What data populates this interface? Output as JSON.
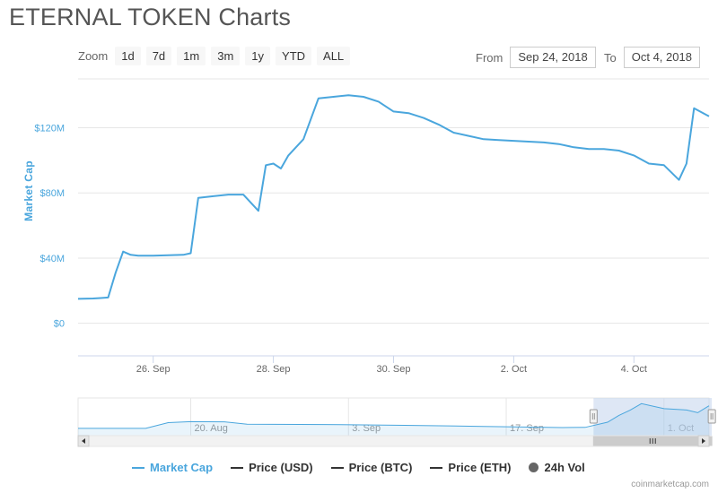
{
  "title": "ETERNAL TOKEN Charts",
  "zoom": {
    "label": "Zoom",
    "buttons": [
      "1d",
      "7d",
      "1m",
      "3m",
      "1y",
      "YTD",
      "ALL"
    ]
  },
  "range": {
    "from_label": "From",
    "from_value": "Sep 24, 2018",
    "to_label": "To",
    "to_value": "Oct 4, 2018"
  },
  "credit": "coinmarketcap.com",
  "colors": {
    "series": "#4aa6dd",
    "grid": "#e6e6e6",
    "navigator_mask": "#c3d4ed"
  },
  "legend": [
    {
      "name": "Market Cap",
      "kind": "line",
      "color": "#4aa6dd"
    },
    {
      "name": "Price (USD)",
      "kind": "line",
      "color": "#333333"
    },
    {
      "name": "Price (BTC)",
      "kind": "line",
      "color": "#333333"
    },
    {
      "name": "Price (ETH)",
      "kind": "line",
      "color": "#333333"
    },
    {
      "name": "24h Vol",
      "kind": "dot",
      "color": "#666666"
    }
  ],
  "chart_data": {
    "type": "line",
    "title": "ETERNAL TOKEN Charts",
    "ylabel": "Market Cap",
    "xlabel": "",
    "y_unit": "USD",
    "ylim": [
      -20000000,
      150000000
    ],
    "y_ticks": [
      {
        "value": 0,
        "label": "$0"
      },
      {
        "value": 40000000,
        "label": "$40M"
      },
      {
        "value": 80000000,
        "label": "$80M"
      },
      {
        "value": 120000000,
        "label": "$120M"
      }
    ],
    "xlim": [
      "2018-09-24 18:00",
      "2018-10-05 06:00"
    ],
    "x_ticks": [
      {
        "value": "2018-09-26",
        "label": "26. Sep"
      },
      {
        "value": "2018-09-28",
        "label": "28. Sep"
      },
      {
        "value": "2018-09-30",
        "label": "30. Sep"
      },
      {
        "value": "2018-10-02",
        "label": "2. Oct"
      },
      {
        "value": "2018-10-04",
        "label": "4. Oct"
      }
    ],
    "grid": true,
    "legend_position": "bottom",
    "series": [
      {
        "name": "Market Cap",
        "color": "#4aa6dd",
        "points": [
          [
            "2018-09-24 18:00",
            15000000
          ],
          [
            "2018-09-25 00:00",
            15200000
          ],
          [
            "2018-09-25 03:00",
            15500000
          ],
          [
            "2018-09-25 06:00",
            15800000
          ],
          [
            "2018-09-25 09:00",
            31000000
          ],
          [
            "2018-09-25 12:00",
            44000000
          ],
          [
            "2018-09-25 15:00",
            42000000
          ],
          [
            "2018-09-25 18:00",
            41500000
          ],
          [
            "2018-09-26 00:00",
            41500000
          ],
          [
            "2018-09-26 06:00",
            41800000
          ],
          [
            "2018-09-26 12:00",
            42000000
          ],
          [
            "2018-09-26 15:00",
            43000000
          ],
          [
            "2018-09-26 18:00",
            77000000
          ],
          [
            "2018-09-27 00:00",
            78000000
          ],
          [
            "2018-09-27 06:00",
            79000000
          ],
          [
            "2018-09-27 12:00",
            79000000
          ],
          [
            "2018-09-27 18:00",
            69000000
          ],
          [
            "2018-09-27 21:00",
            97000000
          ],
          [
            "2018-09-28 00:00",
            98000000
          ],
          [
            "2018-09-28 03:00",
            95000000
          ],
          [
            "2018-09-28 06:00",
            103000000
          ],
          [
            "2018-09-28 12:00",
            113000000
          ],
          [
            "2018-09-28 18:00",
            138000000
          ],
          [
            "2018-09-29 00:00",
            139000000
          ],
          [
            "2018-09-29 06:00",
            140000000
          ],
          [
            "2018-09-29 12:00",
            139000000
          ],
          [
            "2018-09-29 18:00",
            136000000
          ],
          [
            "2018-09-30 00:00",
            130000000
          ],
          [
            "2018-09-30 06:00",
            129000000
          ],
          [
            "2018-09-30 12:00",
            126000000
          ],
          [
            "2018-09-30 18:00",
            122000000
          ],
          [
            "2018-10-01 00:00",
            117000000
          ],
          [
            "2018-10-01 06:00",
            115000000
          ],
          [
            "2018-10-01 12:00",
            113000000
          ],
          [
            "2018-10-01 18:00",
            112500000
          ],
          [
            "2018-10-02 00:00",
            112000000
          ],
          [
            "2018-10-02 06:00",
            111500000
          ],
          [
            "2018-10-02 12:00",
            111000000
          ],
          [
            "2018-10-02 18:00",
            110000000
          ],
          [
            "2018-10-03 00:00",
            108000000
          ],
          [
            "2018-10-03 06:00",
            107000000
          ],
          [
            "2018-10-03 12:00",
            107000000
          ],
          [
            "2018-10-03 18:00",
            106000000
          ],
          [
            "2018-10-04 00:00",
            103000000
          ],
          [
            "2018-10-04 06:00",
            98000000
          ],
          [
            "2018-10-04 12:00",
            97000000
          ],
          [
            "2018-10-04 18:00",
            88000000
          ],
          [
            "2018-10-04 21:00",
            98000000
          ],
          [
            "2018-10-05 00:00",
            132000000
          ],
          [
            "2018-10-05 06:00",
            127000000
          ]
        ]
      }
    ],
    "navigator": {
      "x_ticks": [
        {
          "value": "2018-08-20",
          "label": "20. Aug"
        },
        {
          "value": "2018-09-03",
          "label": "3. Sep"
        },
        {
          "value": "2018-09-17",
          "label": "17. Sep"
        },
        {
          "value": "2018-10-01",
          "label": "1. Oct"
        }
      ],
      "xlim": [
        "2018-08-10",
        "2018-10-05"
      ],
      "selected_range": [
        "2018-09-24 18:00",
        "2018-10-05 06:00"
      ],
      "points": [
        [
          "2018-08-10",
          10000000
        ],
        [
          "2018-08-16",
          10000000
        ],
        [
          "2018-08-18",
          40000000
        ],
        [
          "2018-08-20",
          45000000
        ],
        [
          "2018-08-23",
          44000000
        ],
        [
          "2018-08-25",
          32000000
        ],
        [
          "2018-09-01",
          30000000
        ],
        [
          "2018-09-08",
          26000000
        ],
        [
          "2018-09-15",
          20000000
        ],
        [
          "2018-09-22",
          14000000
        ],
        [
          "2018-09-24",
          15000000
        ],
        [
          "2018-09-26",
          42000000
        ],
        [
          "2018-09-27",
          78000000
        ],
        [
          "2018-09-28",
          105000000
        ],
        [
          "2018-09-29",
          139000000
        ],
        [
          "2018-10-01",
          113000000
        ],
        [
          "2018-10-03",
          106000000
        ],
        [
          "2018-10-04",
          92000000
        ],
        [
          "2018-10-05",
          128000000
        ]
      ]
    }
  }
}
